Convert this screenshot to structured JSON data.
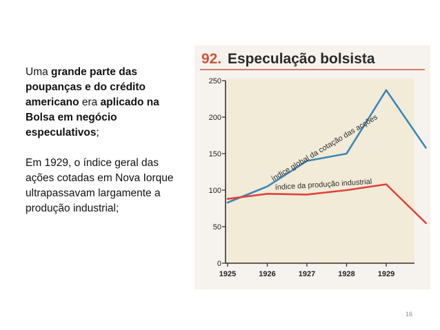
{
  "slide": {
    "paragraph1": [
      {
        "text": "Uma ",
        "bold": false
      },
      {
        "text": "grande parte das poupanças e do crédito americano",
        "bold": true
      },
      {
        "text": " era ",
        "bold": false
      },
      {
        "text": "aplicado na Bolsa em negócio especulativos",
        "bold": true
      },
      {
        "text": ";",
        "bold": false
      }
    ],
    "paragraph2": "Em 1929, o índice geral das ações cotadas em Nova Iorque ultrapassavam largamente a produção industrial;",
    "number": "16"
  },
  "figure": {
    "number": "92.",
    "title": "Especulação bolsista"
  },
  "chart_data": {
    "type": "line",
    "title": "Especulação bolsista",
    "x": [
      "1925",
      "1926",
      "1927",
      "1928",
      "1929",
      "1930"
    ],
    "x_ticks": [
      "1925",
      "1926",
      "1927",
      "1928",
      "1929"
    ],
    "yticks": [
      0,
      50,
      100,
      150,
      200,
      250
    ],
    "ylim": [
      0,
      250
    ],
    "grid": false,
    "series": [
      {
        "name": "índice global da cotação das acções",
        "color": "#3b86b8",
        "values": [
          83,
          105,
          140,
          150,
          237,
          158
        ]
      },
      {
        "name": "índice da produção industrial",
        "color": "#e0413b",
        "values": [
          88,
          95,
          94,
          100,
          108,
          55
        ]
      }
    ]
  }
}
